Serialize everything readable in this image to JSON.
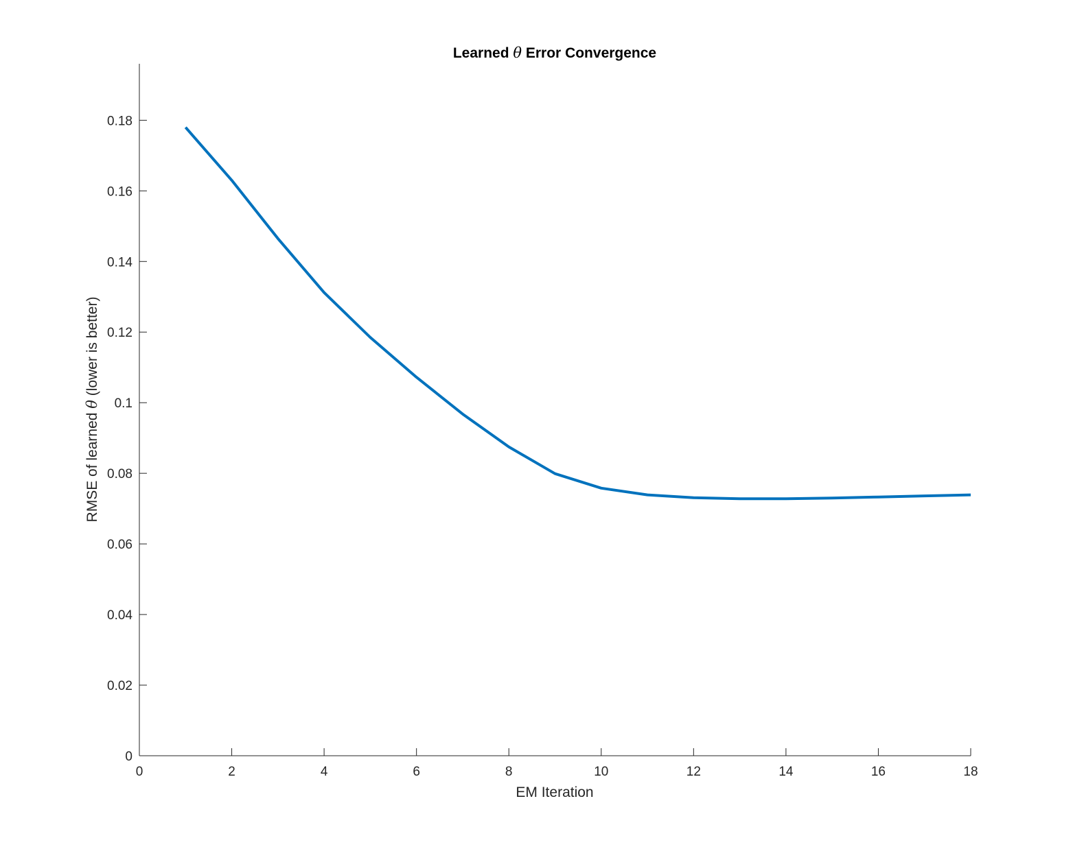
{
  "chart_data": {
    "type": "line",
    "title_parts": [
      "Learned ",
      "θ",
      " Error Convergence"
    ],
    "xlabel": "EM Iteration",
    "ylabel_parts": [
      "RMSE of learned ",
      "θ",
      " (lower is better)"
    ],
    "xlim": [
      0,
      18
    ],
    "ylim": [
      0,
      0.196
    ],
    "x_ticks": [
      0,
      2,
      4,
      6,
      8,
      10,
      12,
      14,
      16,
      18
    ],
    "x_tick_labels": [
      "0",
      "2",
      "4",
      "6",
      "8",
      "10",
      "12",
      "14",
      "16",
      "18"
    ],
    "y_ticks": [
      0,
      0.02,
      0.04,
      0.06,
      0.08,
      0.1,
      0.12,
      0.14,
      0.16,
      0.18
    ],
    "y_tick_labels": [
      "0",
      "0.02",
      "0.04",
      "0.06",
      "0.08",
      "0.1",
      "0.12",
      "0.14",
      "0.16",
      "0.18"
    ],
    "grid": false,
    "series": [
      {
        "color": "#0072BD",
        "x": [
          1,
          2,
          3,
          4,
          5,
          6,
          7,
          8,
          9,
          10,
          11,
          12,
          13,
          14,
          15,
          16,
          17,
          18
        ],
        "y": [
          0.178,
          0.163,
          0.1465,
          0.1312,
          0.1185,
          0.1072,
          0.0968,
          0.0875,
          0.0799,
          0.0758,
          0.0739,
          0.0731,
          0.0728,
          0.0728,
          0.073,
          0.0733,
          0.0736,
          0.0739
        ]
      }
    ]
  }
}
